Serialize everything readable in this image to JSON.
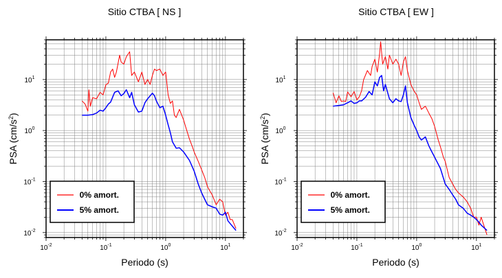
{
  "chart_data": [
    {
      "type": "line",
      "title": "Sitio CTBA [ NS ]",
      "xlabel": "Periodo (s)",
      "ylabel_base": "PSA (cm/s",
      "ylabel_sup": "2",
      "ylabel_end": ")",
      "xscale": "log",
      "yscale": "log",
      "xlim": [
        0.01,
        20
      ],
      "ylim": [
        0.008,
        60
      ],
      "grid": true,
      "legend_position": "bottom-left",
      "x_tick_labels": [
        {
          "base": "10",
          "exp": "-2"
        },
        {
          "base": "10",
          "exp": "-1"
        },
        {
          "base": "10",
          "exp": "0"
        },
        {
          "base": "10",
          "exp": "1"
        }
      ],
      "y_tick_labels": [
        {
          "base": "10",
          "exp": "-2"
        },
        {
          "base": "10",
          "exp": "-1"
        },
        {
          "base": "10",
          "exp": "0"
        },
        {
          "base": "10",
          "exp": "1"
        }
      ],
      "series": [
        {
          "name": "0% amort.",
          "color": "#ff0000",
          "x": [
            0.04,
            0.045,
            0.05,
            0.052,
            0.055,
            0.06,
            0.07,
            0.08,
            0.09,
            0.1,
            0.11,
            0.12,
            0.13,
            0.14,
            0.15,
            0.17,
            0.18,
            0.2,
            0.22,
            0.25,
            0.27,
            0.3,
            0.35,
            0.4,
            0.45,
            0.5,
            0.55,
            0.6,
            0.65,
            0.7,
            0.8,
            0.9,
            1.0,
            1.1,
            1.2,
            1.3,
            1.4,
            1.5,
            1.7,
            2.0,
            2.2,
            2.5,
            2.8,
            3.0,
            3.5,
            4.0,
            4.5,
            5.0,
            5.5,
            6.0,
            7.0,
            8.0,
            9.0,
            10.0,
            11.0,
            12.0,
            13.0,
            15.0
          ],
          "y": [
            3.8,
            3.3,
            2.4,
            6.3,
            3.0,
            4.4,
            4.2,
            5.6,
            5.0,
            7.9,
            8.5,
            14,
            16,
            11,
            14,
            30,
            22,
            20,
            28,
            35,
            12,
            14,
            9,
            14,
            8,
            10,
            8,
            12,
            16,
            15,
            16,
            12,
            14,
            5,
            3.4,
            3.8,
            2.0,
            1.8,
            2.6,
            1.6,
            1.1,
            0.68,
            0.48,
            0.38,
            0.25,
            0.17,
            0.12,
            0.08,
            0.065,
            0.055,
            0.035,
            0.045,
            0.04,
            0.022,
            0.025,
            0.018,
            0.018,
            0.012
          ]
        },
        {
          "name": "5% amort.",
          "color": "#0000ff",
          "x": [
            0.04,
            0.05,
            0.06,
            0.07,
            0.08,
            0.09,
            0.1,
            0.11,
            0.12,
            0.14,
            0.16,
            0.18,
            0.2,
            0.22,
            0.25,
            0.27,
            0.3,
            0.35,
            0.4,
            0.45,
            0.5,
            0.6,
            0.65,
            0.7,
            0.8,
            0.9,
            1.0,
            1.1,
            1.2,
            1.3,
            1.5,
            1.7,
            2.0,
            2.5,
            3.0,
            3.5,
            4.0,
            4.5,
            5.0,
            6.0,
            7.0,
            8.0,
            9.0,
            10.0,
            11.0,
            12.0,
            15.0
          ],
          "y": [
            2.0,
            2.0,
            2.05,
            2.2,
            2.5,
            2.4,
            2.8,
            3.3,
            3.6,
            5.6,
            6.0,
            4.8,
            5.3,
            6.3,
            4.4,
            5.6,
            3.2,
            2.3,
            2.4,
            3.5,
            4.2,
            5.4,
            4.8,
            3.8,
            2.8,
            3.0,
            2.0,
            1.3,
            0.9,
            0.6,
            0.45,
            0.46,
            0.38,
            0.26,
            0.16,
            0.09,
            0.06,
            0.045,
            0.035,
            0.032,
            0.03,
            0.023,
            0.022,
            0.025,
            0.017,
            0.015,
            0.011
          ]
        }
      ]
    },
    {
      "type": "line",
      "title": "Sitio CTBA [ EW ]",
      "xlabel": "Periodo (s)",
      "ylabel_base": "PSA (cm/s",
      "ylabel_sup": "2",
      "ylabel_end": ")",
      "xscale": "log",
      "yscale": "log",
      "xlim": [
        0.01,
        20
      ],
      "ylim": [
        0.008,
        60
      ],
      "grid": true,
      "legend_position": "bottom-left",
      "x_tick_labels": [
        {
          "base": "10",
          "exp": "-2"
        },
        {
          "base": "10",
          "exp": "-1"
        },
        {
          "base": "10",
          "exp": "0"
        },
        {
          "base": "10",
          "exp": "1"
        }
      ],
      "y_tick_labels": [
        {
          "base": "10",
          "exp": "-2"
        },
        {
          "base": "10",
          "exp": "-1"
        },
        {
          "base": "10",
          "exp": "0"
        },
        {
          "base": "10",
          "exp": "1"
        }
      ],
      "series": [
        {
          "name": "0% amort.",
          "color": "#ff0000",
          "x": [
            0.04,
            0.045,
            0.05,
            0.055,
            0.06,
            0.065,
            0.07,
            0.08,
            0.09,
            0.1,
            0.11,
            0.12,
            0.13,
            0.15,
            0.17,
            0.18,
            0.2,
            0.22,
            0.24,
            0.25,
            0.27,
            0.3,
            0.33,
            0.35,
            0.4,
            0.45,
            0.5,
            0.55,
            0.6,
            0.65,
            0.7,
            0.8,
            0.9,
            1.0,
            1.1,
            1.2,
            1.4,
            1.6,
            1.8,
            2.0,
            2.3,
            2.5,
            2.8,
            3.0,
            3.5,
            4.0,
            4.5,
            5.0,
            6.0,
            7.0,
            8.0,
            9.0,
            10.0,
            11.0,
            12.0,
            13.0,
            15.0
          ],
          "y": [
            5.5,
            3.5,
            4.8,
            3.7,
            3.8,
            3.7,
            5.7,
            4.6,
            5.8,
            4.0,
            4.6,
            6.0,
            10,
            15,
            12,
            18,
            25,
            14,
            32,
            55,
            20,
            28,
            16,
            30,
            20,
            25,
            20,
            12,
            22,
            28,
            15,
            8,
            6,
            5,
            3.5,
            2.6,
            3.0,
            2.2,
            1.7,
            1.2,
            0.65,
            0.48,
            0.3,
            0.25,
            0.12,
            0.09,
            0.07,
            0.06,
            0.05,
            0.04,
            0.03,
            0.02,
            0.02,
            0.014,
            0.02,
            0.015,
            0.009
          ]
        },
        {
          "name": "5% amort.",
          "color": "#0000ff",
          "x": [
            0.04,
            0.05,
            0.06,
            0.07,
            0.08,
            0.09,
            0.1,
            0.11,
            0.12,
            0.14,
            0.16,
            0.18,
            0.2,
            0.22,
            0.24,
            0.26,
            0.28,
            0.3,
            0.35,
            0.4,
            0.45,
            0.5,
            0.55,
            0.6,
            0.65,
            0.7,
            0.8,
            0.9,
            1.0,
            1.1,
            1.2,
            1.4,
            1.6,
            1.8,
            2.0,
            2.5,
            3.0,
            3.5,
            4.0,
            4.5,
            5.0,
            6.0,
            7.0,
            8.0,
            9.0,
            10.0,
            11.0,
            12.0,
            15.0
          ],
          "y": [
            3.0,
            3.1,
            3.2,
            3.5,
            3.8,
            3.4,
            3.5,
            3.8,
            3.8,
            4.5,
            5.8,
            5.0,
            9.0,
            7.5,
            11,
            12,
            6,
            8,
            4.2,
            3.5,
            4.2,
            3.8,
            3.7,
            5.0,
            7.5,
            3.5,
            1.8,
            1.3,
            1.0,
            0.75,
            0.65,
            0.75,
            0.5,
            0.38,
            0.3,
            0.18,
            0.09,
            0.07,
            0.055,
            0.045,
            0.035,
            0.03,
            0.024,
            0.022,
            0.02,
            0.018,
            0.016,
            0.014,
            0.011
          ]
        }
      ]
    }
  ]
}
